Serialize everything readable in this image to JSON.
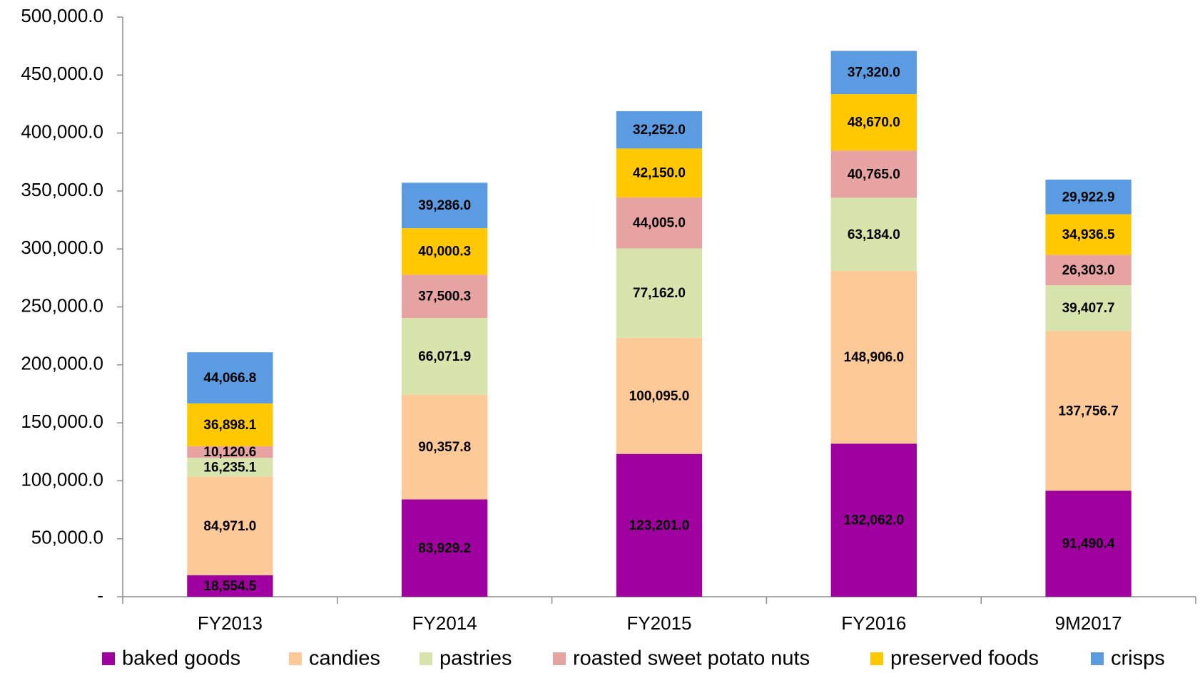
{
  "chart_data": {
    "type": "stacked_bar",
    "categories": [
      "FY2013",
      "FY2014",
      "FY2015",
      "FY2016",
      "9M2017"
    ],
    "series": [
      {
        "name": "baked goods",
        "color": "#a100a0",
        "values": [
          18554.5,
          83929.2,
          123201.0,
          132062.0,
          91490.4
        ],
        "value_labels": [
          "18,554.5",
          "83,929.2",
          "123,201.0",
          "132,062.0",
          "91,490.4"
        ]
      },
      {
        "name": "candies",
        "color": "#fdc996",
        "values": [
          84971.0,
          90357.8,
          100095.0,
          148906.0,
          137756.7
        ],
        "value_labels": [
          "84,971.0",
          "90,357.8",
          "100,095.0",
          "148,906.0",
          "137,756.7"
        ]
      },
      {
        "name": "pastries",
        "color": "#d7e4ab",
        "values": [
          16235.1,
          66071.9,
          77162.0,
          63184.0,
          39407.7
        ],
        "value_labels": [
          "16,235.1",
          "66,071.9",
          "77,162.0",
          "63,184.0",
          "39,407.7"
        ]
      },
      {
        "name": "roasted sweet potato nuts",
        "color": "#e7a2a2",
        "values": [
          10120.6,
          37500.3,
          44005.0,
          40765.0,
          26303.0
        ],
        "value_labels": [
          "10,120.6",
          "37,500.3",
          "44,005.0",
          "40,765.0",
          "26,303.0"
        ]
      },
      {
        "name": "preserved foods",
        "color": "#ffc800",
        "values": [
          36898.1,
          40000.3,
          42150.0,
          48670.0,
          34936.5
        ],
        "value_labels": [
          "36,898.1",
          "40,000.3",
          "42,150.0",
          "48,670.0",
          "34,936.5"
        ]
      },
      {
        "name": "crisps",
        "color": "#5b9be1",
        "values": [
          44066.8,
          39286.0,
          32252.0,
          37320.0,
          29922.9
        ],
        "value_labels": [
          "44,066.8",
          "39,286.0",
          "32,252.0",
          "37,320.0",
          "29,922.9"
        ]
      }
    ],
    "ylim": [
      0,
      500000
    ],
    "yticks": [
      {
        "value": 0,
        "label": "-"
      },
      {
        "value": 50000,
        "label": "50,000.0"
      },
      {
        "value": 100000,
        "label": "100,000.0"
      },
      {
        "value": 150000,
        "label": "150,000.0"
      },
      {
        "value": 200000,
        "label": "200,000.0"
      },
      {
        "value": 250000,
        "label": "250,000.0"
      },
      {
        "value": 300000,
        "label": "300,000.0"
      },
      {
        "value": 350000,
        "label": "350,000.0"
      },
      {
        "value": 400000,
        "label": "400,000.0"
      },
      {
        "value": 450000,
        "label": "450,000.0"
      },
      {
        "value": 500000,
        "label": "500,000.0"
      }
    ],
    "grid": false,
    "legend": "bottom"
  }
}
